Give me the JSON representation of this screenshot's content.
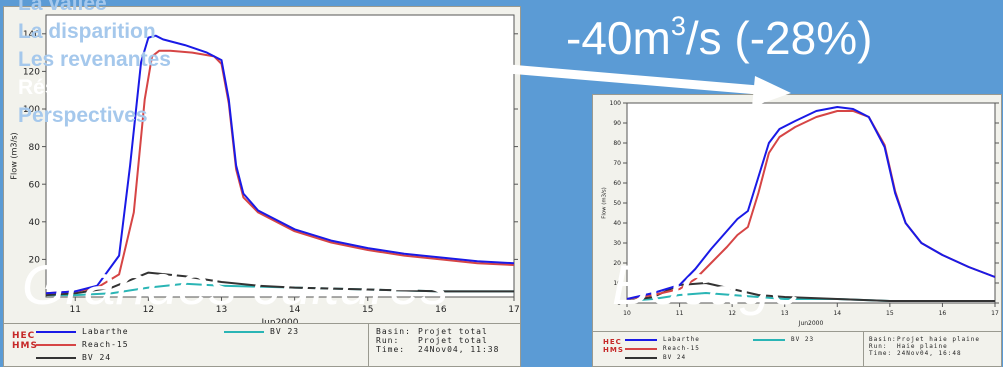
{
  "nav": {
    "items": [
      {
        "label": "La vallée",
        "active": false
      },
      {
        "label": "La disparition",
        "active": false
      },
      {
        "label": "Les revenantes",
        "active": false
      },
      {
        "label": "Résultats",
        "active": true
      },
      {
        "label": "Perspectives",
        "active": false
      }
    ]
  },
  "headline": {
    "prefix": "-40m",
    "sup": "3",
    "suffix": "/s (-28%)"
  },
  "captions": {
    "left": "Grandes cultures",
    "right": "Bocage"
  },
  "colors": {
    "background": "#5b9bd5",
    "labarthe": "#1a1ae6",
    "reach15": "#d64545",
    "bv24": "#333333",
    "bv23": "#2ab5b5",
    "arrow": "#ffffff"
  },
  "chart_data": [
    {
      "type": "line",
      "id": "grandes-cultures",
      "xlabel": "Jun2000",
      "ylabel": "Flow (m3/s)",
      "xlim": [
        10.6,
        17
      ],
      "ylim": [
        0,
        150
      ],
      "xticks": [
        11,
        12,
        13,
        14,
        15,
        16,
        17
      ],
      "xtick_labels": [
        "11",
        "12",
        "13",
        "14",
        "15",
        "16",
        "17"
      ],
      "yticks": [
        20,
        40,
        60,
        80,
        100,
        120,
        140
      ],
      "ytick_labels": [
        "20",
        "40",
        "60",
        "80",
        "100",
        "120",
        "140"
      ],
      "grid": false,
      "series": [
        {
          "name": "Labarthe",
          "color": "#1a1ae6",
          "x": [
            10.6,
            11.0,
            11.3,
            11.6,
            11.75,
            11.9,
            12.0,
            12.1,
            12.2,
            12.5,
            12.8,
            13.0,
            13.1,
            13.2,
            13.3,
            13.5,
            14.0,
            14.5,
            15.0,
            15.5,
            16.0,
            16.5,
            17.0
          ],
          "y": [
            2,
            3,
            6,
            22,
            70,
            125,
            138,
            139,
            137,
            134,
            130,
            126,
            105,
            70,
            55,
            46,
            36,
            30,
            26,
            23,
            21,
            19,
            18
          ]
        },
        {
          "name": "Reach-15",
          "color": "#d64545",
          "x": [
            10.6,
            11.0,
            11.3,
            11.6,
            11.8,
            11.95,
            12.05,
            12.15,
            12.3,
            12.6,
            12.9,
            13.0,
            13.1,
            13.2,
            13.3,
            13.5,
            14.0,
            14.5,
            15.0,
            15.5,
            16.0,
            16.5,
            17.0
          ],
          "y": [
            2,
            3,
            5,
            12,
            45,
            105,
            128,
            131,
            131,
            130,
            128,
            124,
            103,
            68,
            53,
            45,
            35,
            29,
            25,
            22,
            20,
            18,
            17
          ]
        },
        {
          "name": "BV 24",
          "color": "#333333",
          "x": [
            10.6,
            11.0,
            11.5,
            12.0,
            12.5,
            13.0,
            13.5,
            14.0,
            15.0,
            16.0,
            17.0
          ],
          "y": [
            1,
            2,
            5,
            13,
            11,
            8,
            6,
            5,
            4,
            3,
            3
          ]
        },
        {
          "name": "BV 23",
          "color": "#2ab5b5",
          "x": [
            10.6,
            11.0,
            11.5,
            12.0,
            12.5,
            13.0,
            14.0,
            15.0,
            16.0,
            17.0
          ],
          "y": [
            1,
            1,
            2,
            5,
            7,
            6,
            5,
            4,
            3,
            3
          ]
        }
      ],
      "legend": {
        "entries": [
          "Labarthe",
          "Reach-15",
          "BV 24",
          "BV 23"
        ],
        "info": [
          {
            "key": "Basin:",
            "value": "Projet total"
          },
          {
            "key": "Run:",
            "value": "Projet total"
          },
          {
            "key": "Time:",
            "value": "24Nov04, 11:38"
          }
        ]
      }
    },
    {
      "type": "line",
      "id": "bocage",
      "xlabel": "Jun2000",
      "ylabel": "Flow (m3/s)",
      "xlim": [
        10,
        17
      ],
      "ylim": [
        0,
        100
      ],
      "xticks": [
        10,
        11,
        12,
        13,
        14,
        15,
        16,
        17
      ],
      "xtick_labels": [
        "10",
        "11",
        "12",
        "13",
        "14",
        "15",
        "16",
        "17"
      ],
      "yticks": [
        0,
        10,
        20,
        30,
        40,
        50,
        60,
        70,
        80,
        90,
        100
      ],
      "ytick_labels": [
        "0",
        "10",
        "20",
        "30",
        "40",
        "50",
        "60",
        "70",
        "80",
        "90",
        "100"
      ],
      "grid": false,
      "series": [
        {
          "name": "Labarthe",
          "color": "#1a1ae6",
          "x": [
            10.0,
            10.5,
            11.0,
            11.3,
            11.6,
            11.9,
            12.1,
            12.3,
            12.5,
            12.7,
            12.9,
            13.2,
            13.6,
            14.0,
            14.3,
            14.6,
            14.9,
            15.1,
            15.3,
            15.6,
            16.0,
            16.5,
            17.0
          ],
          "y": [
            2,
            5,
            9,
            17,
            27,
            36,
            42,
            46,
            63,
            80,
            87,
            91,
            96,
            98,
            97,
            93,
            78,
            55,
            40,
            30,
            24,
            18,
            13
          ]
        },
        {
          "name": "Reach-15",
          "color": "#d64545",
          "x": [
            10.0,
            10.5,
            11.0,
            11.3,
            11.6,
            11.9,
            12.1,
            12.3,
            12.5,
            12.7,
            12.9,
            13.2,
            13.6,
            14.0,
            14.3,
            14.6,
            14.9,
            15.1,
            15.3,
            15.6,
            16.0,
            16.5,
            17.0
          ],
          "y": [
            2,
            4,
            7,
            12,
            20,
            28,
            34,
            38,
            55,
            75,
            83,
            88,
            93,
            96,
            96,
            93,
            79,
            56,
            40,
            30,
            24,
            18,
            13
          ]
        },
        {
          "name": "BV 24",
          "color": "#333333",
          "x": [
            10.0,
            10.5,
            11.0,
            11.5,
            12.0,
            12.5,
            13.0,
            14.0,
            15.0,
            16.0,
            17.0
          ],
          "y": [
            1,
            3,
            9,
            10,
            7,
            4,
            3,
            2,
            1,
            1,
            1
          ]
        },
        {
          "name": "BV 23",
          "color": "#2ab5b5",
          "x": [
            10.0,
            10.5,
            11.0,
            11.5,
            12.0,
            12.5,
            13.0,
            14.0,
            15.0,
            16.0,
            17.0
          ],
          "y": [
            1,
            2,
            4,
            5,
            4,
            3,
            2,
            2,
            1,
            1,
            1
          ]
        }
      ],
      "legend": {
        "entries": [
          "Labarthe",
          "Reach-15",
          "BV 24",
          "BV 23"
        ],
        "info": [
          {
            "key": "Basin:",
            "value": "Projet haie plaine"
          },
          {
            "key": "Run:",
            "value": "Haie plaine"
          },
          {
            "key": "Time:",
            "value": "24Nov04, 16:48"
          }
        ]
      }
    }
  ],
  "logo": {
    "line1": "HEC",
    "line2": "HMS"
  }
}
